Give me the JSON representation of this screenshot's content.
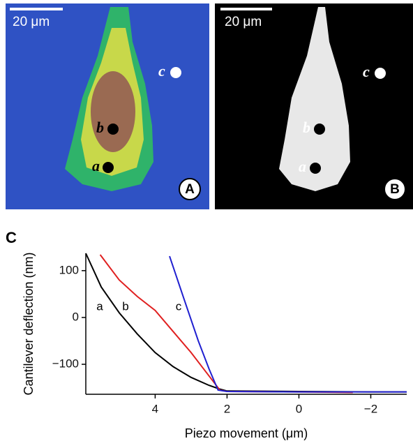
{
  "panels": [
    {
      "label": "A",
      "scale_bar": "20 μm",
      "points": [
        "a",
        "b",
        "c"
      ]
    },
    {
      "label": "B",
      "scale_bar": "20 μm",
      "points": [
        "a",
        "b",
        "c"
      ]
    }
  ],
  "chart_data": {
    "type": "line",
    "label": "C",
    "x_label": "Piezo movement (μm)",
    "y_label": "Cantilever deflection (nm)",
    "xlim": [
      5.93,
      -3
    ],
    "ylim": [
      -164,
      137
    ],
    "xticks": [
      4,
      2,
      0,
      {
        "value": -2,
        "label": "−2"
      }
    ],
    "yticks": [
      100,
      0,
      {
        "value": -100,
        "label": "−100"
      }
    ],
    "series": [
      {
        "name": "a",
        "color": "#000000",
        "x": [
          5.93,
          5.5,
          5,
          4.5,
          4,
          3.5,
          3,
          2.5,
          2.2,
          2,
          0,
          -2,
          -3
        ],
        "values": [
          137,
          65,
          10,
          -35,
          -75,
          -105,
          -128,
          -145,
          -153,
          -157,
          -158,
          -159,
          -159
        ]
      },
      {
        "name": "b",
        "color": "#e02020",
        "x": [
          5.53,
          5,
          4.5,
          4,
          3.5,
          3,
          2.5,
          2.2,
          2,
          0,
          -1.5
        ],
        "values": [
          134,
          80,
          45,
          15,
          -30,
          -75,
          -125,
          -155,
          -158,
          -159,
          -160
        ]
      },
      {
        "name": "c",
        "color": "#2020d0",
        "x": [
          3.6,
          3.2,
          2.8,
          2.5,
          2.25,
          2,
          0,
          -3
        ],
        "values": [
          131,
          40,
          -50,
          -110,
          -155,
          -158,
          -159,
          -159
        ]
      }
    ]
  }
}
